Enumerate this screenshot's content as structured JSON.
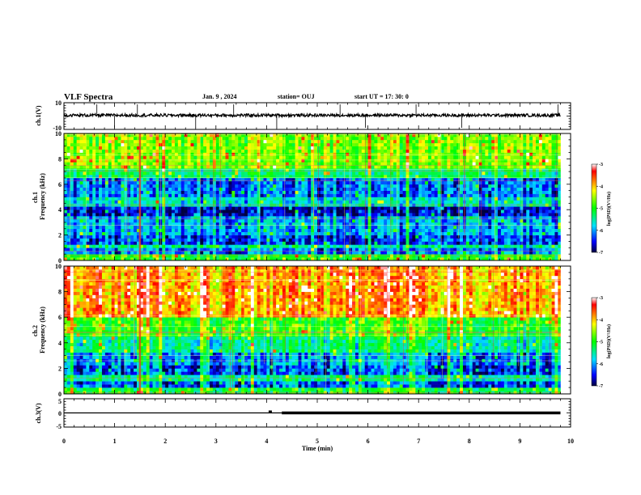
{
  "header": {
    "title": "VLF Spectra",
    "date": "Jan. 9 , 2024",
    "station": "station= OUJ",
    "start": "start UT = 17: 30: 0"
  },
  "chart_data": [
    {
      "id": "ch1-waveform",
      "type": "line",
      "ylabel": "ch.1(V)",
      "ylim": [
        -10,
        10
      ],
      "y_ticks": [
        "10",
        "-10"
      ],
      "x_range": [
        0,
        10
      ],
      "trace_end_min": 9.8,
      "baseline_v": 0.6,
      "spikes_min": [
        0.65,
        1.0,
        1.45,
        2.6,
        3.35,
        4.2,
        5.45,
        5.95,
        6.95,
        7.85,
        9.75
      ]
    },
    {
      "id": "ch1-spectrogram",
      "type": "heatmap",
      "ylabel": "ch.1\nFrequency (kHz)",
      "ylim": [
        0,
        10
      ],
      "y_ticks": [
        "0",
        "2",
        "4",
        "6",
        "8",
        "10"
      ],
      "x_range": [
        0,
        10
      ],
      "data_end_min": 9.8,
      "colorbar": {
        "label": "log(PSD)(V²/Hz)",
        "range": [
          -7,
          -3
        ],
        "ticks": [
          "-3",
          "-4",
          "-5",
          "-6",
          "-7"
        ]
      },
      "bands_khz": [
        {
          "f0": 0,
          "f1": 0.4,
          "level": -5.0
        },
        {
          "f0": 0.4,
          "f1": 1.0,
          "level": -6.3
        },
        {
          "f0": 1.0,
          "f1": 1.2,
          "level": -5.6
        },
        {
          "f0": 1.2,
          "f1": 2.0,
          "level": -6.5
        },
        {
          "f0": 2.0,
          "f1": 3.5,
          "level": -6.1
        },
        {
          "f0": 3.5,
          "f1": 4.2,
          "level": -6.7
        },
        {
          "f0": 4.2,
          "f1": 4.9,
          "level": -5.8
        },
        {
          "f0": 4.9,
          "f1": 6.3,
          "level": -6.3
        },
        {
          "f0": 6.3,
          "f1": 7.2,
          "level": -5.4
        },
        {
          "f0": 7.2,
          "f1": 10,
          "level": -4.6
        }
      ]
    },
    {
      "id": "ch2-spectrogram",
      "type": "heatmap",
      "ylabel": "ch.2\nFrequency (kHz)",
      "ylim": [
        0,
        10
      ],
      "y_ticks": [
        "0",
        "2",
        "4",
        "6",
        "8",
        "10"
      ],
      "x_range": [
        0,
        10
      ],
      "data_end_min": 9.8,
      "colorbar": {
        "label": "log(PSD)(V²/Hz)",
        "range": [
          -7,
          -3
        ],
        "ticks": [
          "-3",
          "-4",
          "-5",
          "-6",
          "-7"
        ]
      },
      "bands_khz": [
        {
          "f0": 0,
          "f1": 0.4,
          "level": -5.2
        },
        {
          "f0": 0.4,
          "f1": 1.0,
          "level": -6.4
        },
        {
          "f0": 1.0,
          "f1": 1.4,
          "level": -5.6
        },
        {
          "f0": 1.4,
          "f1": 2.2,
          "level": -6.5
        },
        {
          "f0": 2.2,
          "f1": 3.2,
          "level": -6.2
        },
        {
          "f0": 3.2,
          "f1": 4.5,
          "level": -5.6
        },
        {
          "f0": 4.5,
          "f1": 6.0,
          "level": -5.0
        },
        {
          "f0": 6.0,
          "f1": 10,
          "level": -3.9
        }
      ]
    },
    {
      "id": "ch3-waveform",
      "type": "line",
      "ylabel": "ch.3(V)",
      "ylim": [
        -5,
        5
      ],
      "y_ticks": [
        "5",
        "0",
        "-5"
      ],
      "x_range": [
        0,
        10
      ],
      "trace_end_min": 9.8,
      "level_v": 0,
      "thick_from_min": 4.3,
      "xlabel": "Time (min)",
      "x_ticks": [
        "0",
        "1",
        "2",
        "3",
        "4",
        "5",
        "6",
        "7",
        "8",
        "9",
        "10"
      ]
    }
  ]
}
